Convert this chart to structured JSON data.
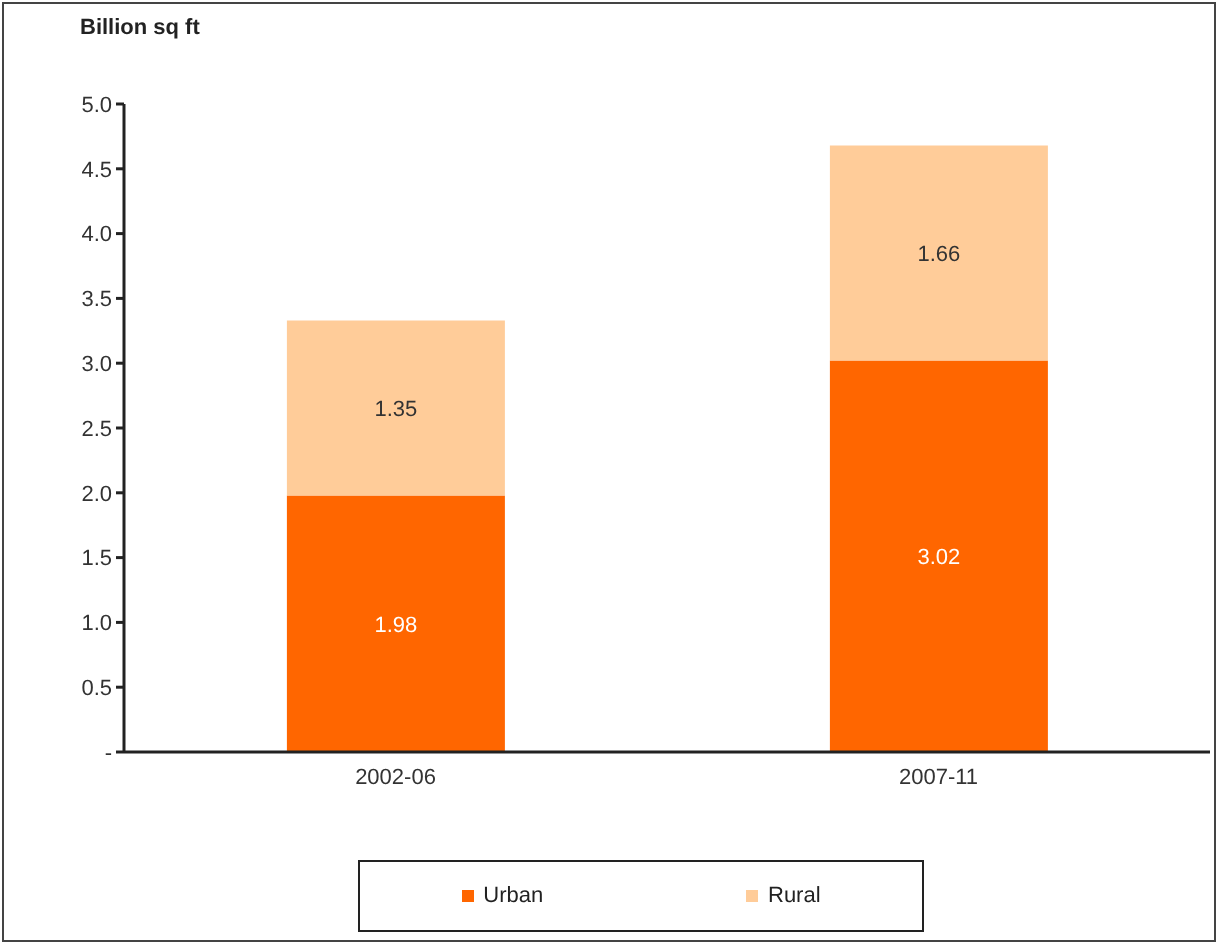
{
  "chart_data": {
    "type": "bar",
    "stacked": true,
    "ylabel": "Billion sq ft",
    "categories": [
      "2002-06",
      "2007-11"
    ],
    "series": [
      {
        "name": "Urban",
        "color": "#ff6600",
        "values": [
          1.98,
          3.02
        ]
      },
      {
        "name": "Rural",
        "color": "#ffcc99",
        "values": [
          1.35,
          1.66
        ]
      }
    ],
    "ylim": [
      0,
      5
    ],
    "yticks": [
      {
        "value": 0,
        "label": "-"
      },
      {
        "value": 0.5,
        "label": "0.5"
      },
      {
        "value": 1,
        "label": "1.0"
      },
      {
        "value": 1.5,
        "label": "1.5"
      },
      {
        "value": 2,
        "label": "2.0"
      },
      {
        "value": 2.5,
        "label": "2.5"
      },
      {
        "value": 3,
        "label": "3.0"
      },
      {
        "value": 3.5,
        "label": "3.5"
      },
      {
        "value": 4,
        "label": "4.0"
      },
      {
        "value": 4.5,
        "label": "4.5"
      },
      {
        "value": 5,
        "label": "5.0"
      }
    ],
    "data_labels": true,
    "legend": "bottom",
    "grid": false
  }
}
